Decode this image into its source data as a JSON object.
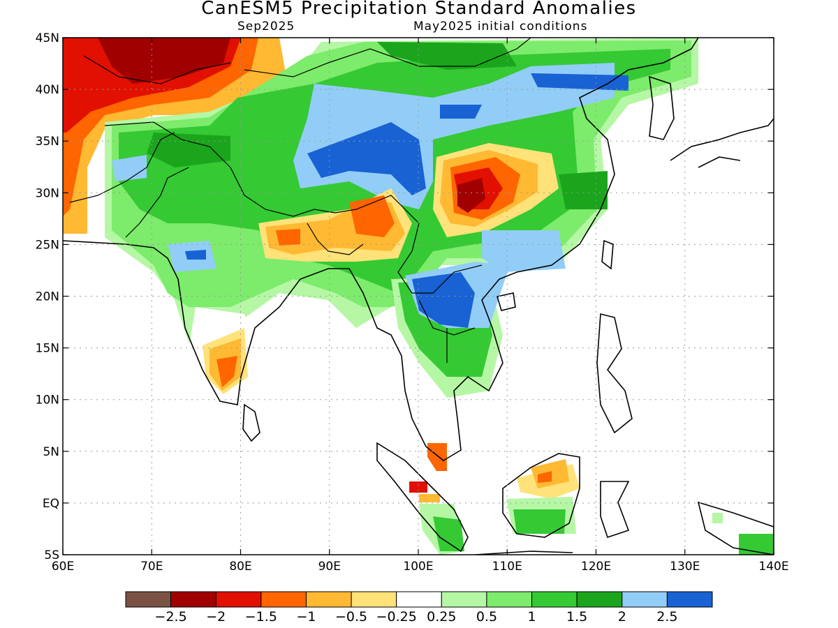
{
  "title": "CanESM5 Precipitation Standard Anomalies",
  "subtitle_left": "Sep2025",
  "subtitle_right": "May2025 initial conditions",
  "map": {
    "lon_range": [
      60,
      140
    ],
    "lat_range": [
      -5,
      45
    ],
    "x_ticks": [
      "60E",
      "70E",
      "80E",
      "90E",
      "100E",
      "110E",
      "120E",
      "130E",
      "140E"
    ],
    "y_ticks": [
      "45N",
      "40N",
      "35N",
      "30N",
      "25N",
      "20N",
      "15N",
      "10N",
      "5N",
      "EQ",
      "5S"
    ],
    "gridlines": true
  },
  "colorbar": {
    "colors": [
      "#7b5144",
      "#a00000",
      "#e11000",
      "#ff6500",
      "#ffb932",
      "#ffe27a",
      "#ffffff",
      "#b5f7a5",
      "#7deb6b",
      "#35c934",
      "#1ba51c",
      "#92cdf7",
      "#1862d4"
    ],
    "labels": [
      "−2.5",
      "−2",
      "−1.5",
      "−1",
      "−0.5",
      "−0.25",
      "0.25",
      "0.5",
      "1",
      "1.5",
      "2",
      "2.5"
    ]
  }
}
